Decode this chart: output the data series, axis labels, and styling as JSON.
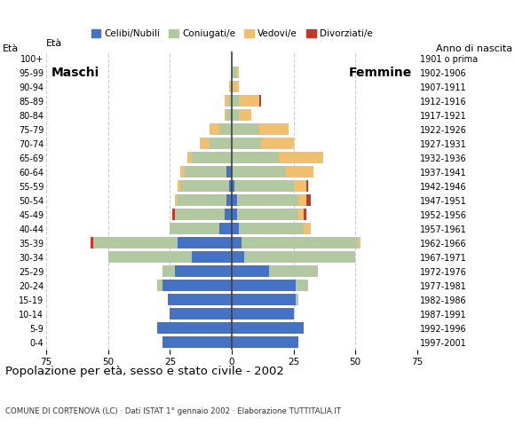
{
  "age_groups": [
    "100+",
    "95-99",
    "90-94",
    "85-89",
    "80-84",
    "75-79",
    "70-74",
    "65-69",
    "60-64",
    "55-59",
    "50-54",
    "45-49",
    "40-44",
    "35-39",
    "30-34",
    "25-29",
    "20-24",
    "15-19",
    "10-14",
    "5-9",
    "0-4"
  ],
  "birth_years": [
    "1901 o prima",
    "1902-1906",
    "1907-1911",
    "1912-1916",
    "1917-1921",
    "1922-1926",
    "1927-1931",
    "1932-1936",
    "1937-1941",
    "1942-1946",
    "1947-1951",
    "1952-1956",
    "1957-1961",
    "1962-1966",
    "1967-1971",
    "1972-1976",
    "1977-1981",
    "1982-1986",
    "1987-1991",
    "1992-1996",
    "1997-2001"
  ],
  "male": {
    "celibi": [
      0,
      0,
      0,
      0,
      0,
      0,
      0,
      0,
      2,
      1,
      2,
      3,
      5,
      22,
      16,
      23,
      28,
      26,
      25,
      30,
      28
    ],
    "coniugati": [
      0,
      0,
      0,
      1,
      2,
      5,
      9,
      16,
      17,
      20,
      20,
      20,
      20,
      34,
      34,
      5,
      2,
      0,
      0,
      0,
      0
    ],
    "vedovi": [
      0,
      0,
      1,
      2,
      1,
      4,
      4,
      2,
      2,
      1,
      1,
      0,
      0,
      0,
      0,
      0,
      0,
      0,
      0,
      0,
      0
    ],
    "divorziati": [
      0,
      0,
      0,
      0,
      0,
      0,
      0,
      0,
      0,
      0,
      0,
      1,
      0,
      1,
      0,
      0,
      0,
      0,
      0,
      0,
      0
    ]
  },
  "female": {
    "nubili": [
      0,
      0,
      0,
      0,
      0,
      0,
      0,
      0,
      0,
      1,
      2,
      2,
      3,
      4,
      5,
      15,
      26,
      26,
      25,
      29,
      27
    ],
    "coniugate": [
      0,
      2,
      1,
      3,
      3,
      11,
      12,
      19,
      22,
      24,
      25,
      25,
      26,
      47,
      45,
      20,
      5,
      1,
      0,
      0,
      0
    ],
    "vedove": [
      0,
      1,
      2,
      8,
      5,
      12,
      13,
      18,
      11,
      5,
      3,
      2,
      3,
      1,
      0,
      0,
      0,
      0,
      0,
      0,
      0
    ],
    "divorziate": [
      0,
      0,
      0,
      1,
      0,
      0,
      0,
      0,
      0,
      1,
      2,
      1,
      0,
      0,
      0,
      0,
      0,
      0,
      0,
      0,
      0
    ]
  },
  "colors": {
    "celibi": "#4472c4",
    "coniugati": "#b2c8a0",
    "vedovi": "#f0c070",
    "divorziati": "#c0392b"
  },
  "xlim": 75,
  "title": "Popolazione per età, sesso e stato civile - 2002",
  "subtitle": "COMUNE DI CORTENOVA (LC) · Dati ISTAT 1° gennaio 2002 · Elaborazione TUTTITALIA.IT",
  "xlabel_left": "Maschi",
  "xlabel_right": "Femmine",
  "ylabel": "Età",
  "ylabel_right": "Anno di nascita",
  "legend_labels": [
    "Celibi/Nubili",
    "Coniugati/e",
    "Vedovi/e",
    "Divorziati/e"
  ],
  "bg_color": "#ffffff",
  "bar_height": 0.82
}
